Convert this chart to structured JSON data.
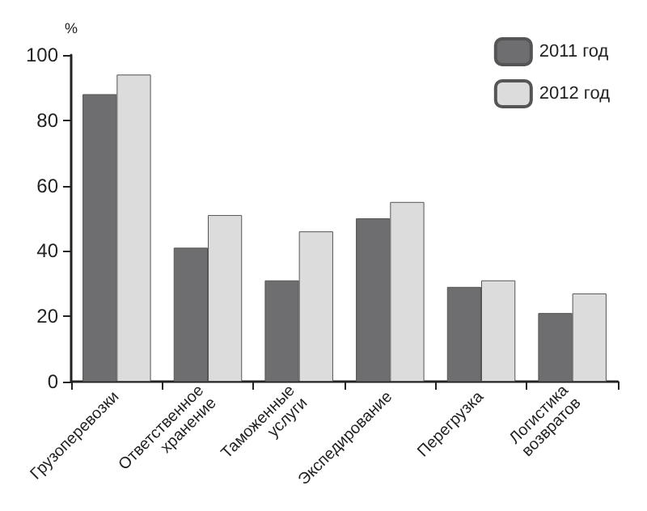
{
  "chart_data": {
    "type": "bar",
    "ylabel": "%",
    "categories": [
      "Грузоперевозки",
      "Ответственное\nхранение",
      "Таможенные\nуслуги",
      "Экспедирование",
      "Перегрузка",
      "Логистика\nвозвратов"
    ],
    "series": [
      {
        "name": "2011 год",
        "color": "#6e6e70",
        "values": [
          88,
          41,
          31,
          50,
          29,
          21
        ]
      },
      {
        "name": "2012 год",
        "color": "#dcdcdc",
        "values": [
          94,
          51,
          46,
          55,
          31,
          27
        ]
      }
    ],
    "ylim": [
      0,
      100
    ],
    "yticks": [
      0,
      20,
      40,
      60,
      80,
      100
    ],
    "grid": false,
    "legend": "top right"
  }
}
